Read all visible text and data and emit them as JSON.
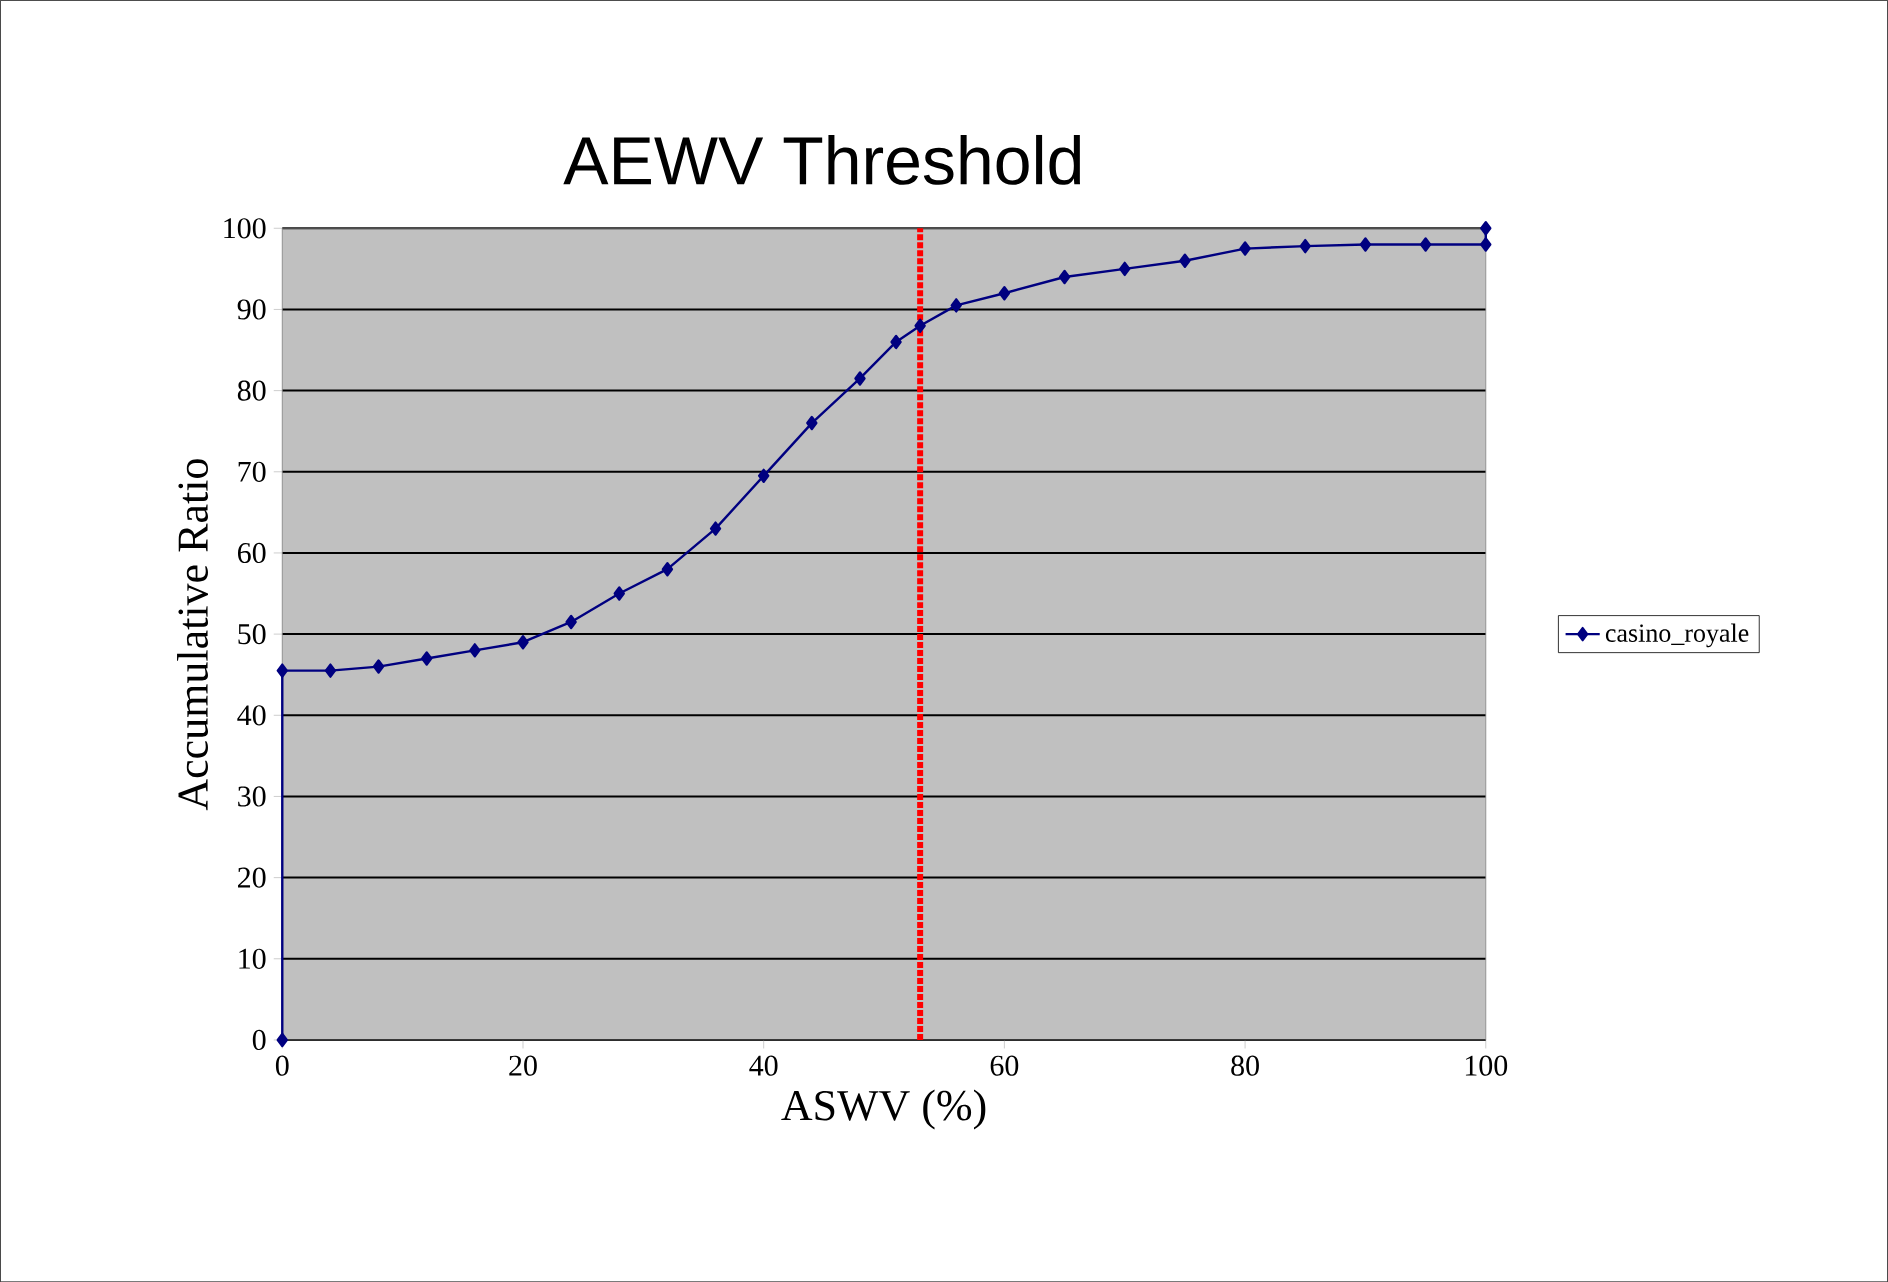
{
  "chart_data": {
    "type": "line",
    "title": "AEWV Threshold",
    "xlabel": "ASWV (%)",
    "ylabel": "Accumulative Ratio",
    "x": [
      0,
      0,
      4,
      8,
      12,
      16,
      20,
      24,
      28,
      32,
      36,
      40,
      44,
      48,
      51,
      53,
      56,
      60,
      65,
      70,
      75,
      80,
      85,
      90,
      95,
      100,
      100
    ],
    "series": [
      {
        "name": "casino_royale",
        "color": "#000080",
        "values": [
          0,
          45.5,
          45.5,
          46,
          47,
          48,
          49,
          51.5,
          55,
          58,
          63,
          69.5,
          76,
          81.5,
          86,
          88,
          90.5,
          92,
          94,
          95,
          96,
          97.5,
          97.8,
          98,
          98,
          98,
          100
        ]
      }
    ],
    "xlim": [
      0,
      100
    ],
    "ylim": [
      0,
      100
    ],
    "xticks": [
      0,
      20,
      40,
      60,
      80,
      100
    ],
    "yticks": [
      0,
      10,
      20,
      30,
      40,
      50,
      60,
      70,
      80,
      90,
      100
    ],
    "grid": "y",
    "legend": "right",
    "marker": "diamond",
    "line_style": "solid",
    "ref_lines": [
      {
        "axis": "x",
        "value": 53,
        "color": "#ff0000",
        "line_style": "dotted"
      }
    ]
  }
}
